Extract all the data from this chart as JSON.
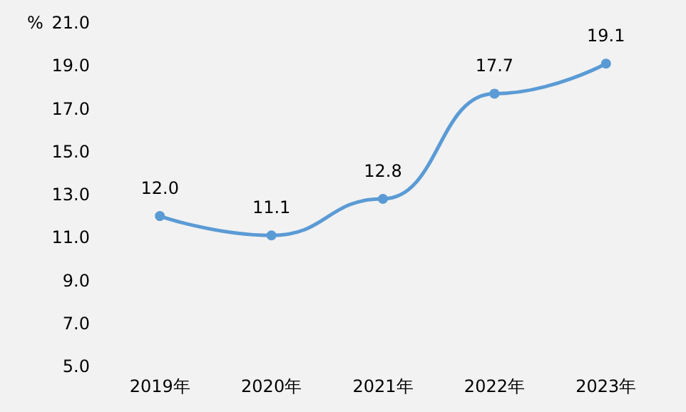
{
  "chart_data": {
    "type": "line",
    "ylabel": "%",
    "categories": [
      "2019年",
      "2020年",
      "2021年",
      "2022年",
      "2023年"
    ],
    "series": [
      {
        "color": "#5b9bd5",
        "values": [
          12.0,
          11.1,
          12.8,
          17.7,
          19.1
        ],
        "value_labels": [
          "12.0",
          "11.1",
          "12.8",
          "17.7",
          "19.1"
        ]
      }
    ],
    "ylim": [
      5,
      21
    ],
    "yticks": [
      {
        "value": 5,
        "label": "5.0"
      },
      {
        "value": 7,
        "label": "7.0"
      },
      {
        "value": 9,
        "label": "9.0"
      },
      {
        "value": 11,
        "label": "11.0"
      },
      {
        "value": 13,
        "label": "13.0"
      },
      {
        "value": 15,
        "label": "15.0"
      },
      {
        "value": 17,
        "label": "17.0"
      },
      {
        "value": 19,
        "label": "19.0"
      },
      {
        "value": 21,
        "label": "21.0"
      }
    ],
    "marker": "circle",
    "line_style": "solid",
    "grid": false
  }
}
